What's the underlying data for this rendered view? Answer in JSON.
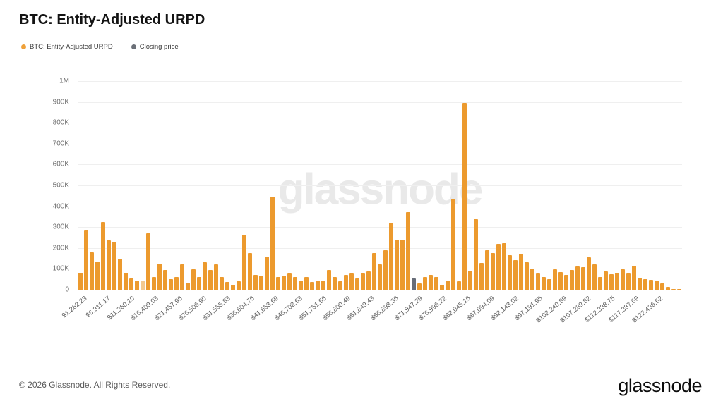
{
  "title": "BTC: Entity-Adjusted URPD",
  "legend": [
    {
      "label": "BTC: Entity-Adjusted URPD",
      "color": "#EFA13A"
    },
    {
      "label": "Closing price",
      "color": "#6B7078"
    }
  ],
  "watermark": "glassnode",
  "footer": {
    "copyright": "© 2026 Glassnode. All Rights Reserved.",
    "logo": "glassnode"
  },
  "chart_data": {
    "type": "bar",
    "title": "BTC: Entity-Adjusted URPD",
    "xlabel": "",
    "ylabel": "",
    "ylim": [
      0,
      1000000
    ],
    "grid": "horizontal",
    "legend_position": "top-left",
    "y_tick_labels": [
      "0",
      "100K",
      "200K",
      "300K",
      "400K",
      "500K",
      "600K",
      "700K",
      "800K",
      "900K",
      "1M"
    ],
    "y_tick_values": [
      0,
      100000,
      200000,
      300000,
      400000,
      500000,
      600000,
      700000,
      800000,
      900000,
      1000000
    ],
    "x_tick_labels": [
      "$1,262.23",
      "$6,311.17",
      "$11,360.10",
      "$16,409.03",
      "$21,457.96",
      "$26,506.90",
      "$31,555.83",
      "$36,604.76",
      "$41,653.69",
      "$46,702.63",
      "$51,751.56",
      "$56,800.49",
      "$61,849.43",
      "$66,898.36",
      "$71,947.29",
      "$76,996.22",
      "$82,045.16",
      "$87,094.09",
      "$92,143.02",
      "$97,191.95",
      "$102,240.89",
      "$107,289.82",
      "$112,338.75",
      "$117,387.69",
      "$122,436.62"
    ],
    "series": [
      {
        "name": "BTC: Entity-Adjusted URPD",
        "unit": "BTC",
        "values": [
          80000,
          285000,
          180000,
          135000,
          325000,
          235000,
          230000,
          150000,
          82000,
          55000,
          45000,
          45000,
          272000,
          60000,
          126000,
          96000,
          52000,
          60000,
          120000,
          35000,
          98000,
          60000,
          132000,
          96000,
          120000,
          62000,
          38000,
          25000,
          42000,
          265000,
          175000,
          70000,
          66000,
          160000,
          445000,
          60000,
          66000,
          78000,
          60000,
          45000,
          60000,
          36000,
          44000,
          44000,
          95000,
          60000,
          42000,
          70000,
          78000,
          55000,
          78000,
          87000,
          175000,
          120000,
          190000,
          320000,
          240000,
          240000,
          370000,
          55000,
          30000,
          60000,
          72000,
          60000,
          25000,
          44000,
          435000,
          42000,
          895000,
          90000,
          338000,
          130000,
          190000,
          175000,
          218000,
          222000,
          166000,
          143000,
          172000,
          132000,
          100000,
          78000,
          60000,
          52000,
          98000,
          85000,
          70000,
          96000,
          112000,
          109000,
          155000,
          120000,
          62000,
          88000,
          74000,
          82000,
          97000,
          78000,
          116000,
          58000,
          50000,
          48000,
          44000,
          29000,
          12000,
          5000,
          3000
        ]
      }
    ],
    "special_bars": {
      "11": "light",
      "59": "closing"
    },
    "closing_price_bucket_label": "$71,947.29",
    "colors": {
      "bar": "#EC9A2E",
      "bar_light": "#F3C98F",
      "closing": "#676D78",
      "gridline": "#efefef"
    }
  }
}
